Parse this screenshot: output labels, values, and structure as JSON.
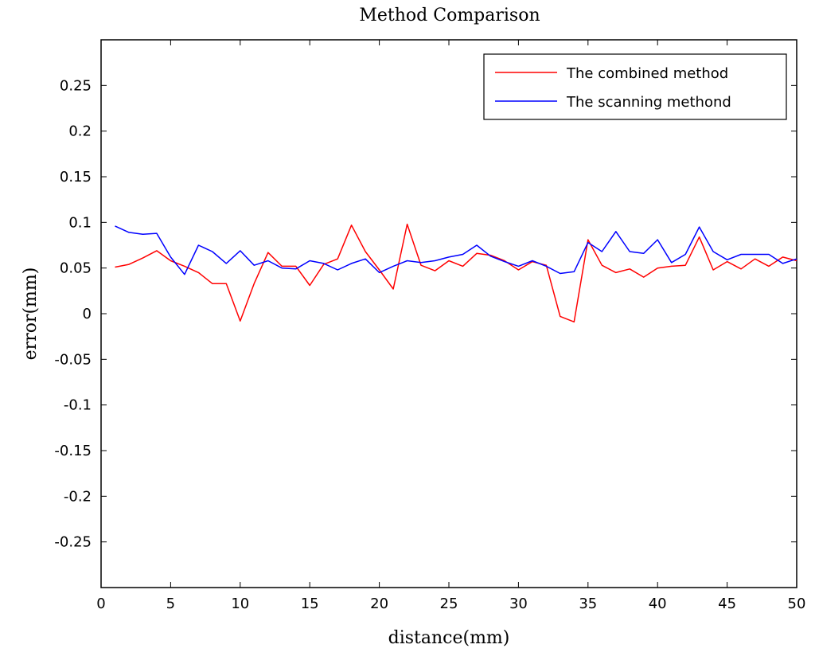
{
  "chart_data": {
    "type": "line",
    "title": "Method Comparison",
    "xlabel": "distance(mm)",
    "ylabel": "error(mm)",
    "xlim": [
      0,
      50
    ],
    "ylim": [
      -0.3,
      0.3
    ],
    "xticks": [
      0,
      5,
      10,
      15,
      20,
      25,
      30,
      35,
      40,
      45,
      50
    ],
    "yticks": [
      -0.25,
      -0.2,
      -0.15,
      -0.1,
      -0.05,
      0,
      0.05,
      0.1,
      0.15,
      0.2,
      0.25
    ],
    "ytick_labels": [
      "-0.25",
      "-0.2",
      "-0.15",
      "-0.1",
      "-0.05",
      "0",
      "0.05",
      "0.1",
      "0.15",
      "0.2",
      "0.25"
    ],
    "grid": false,
    "legend_position": "top-right",
    "series": [
      {
        "name": "The combined method",
        "color": "#ff0000",
        "x": [
          1,
          2,
          3,
          4,
          5,
          6,
          7,
          8,
          9,
          10,
          11,
          12,
          13,
          14,
          15,
          16,
          17,
          18,
          19,
          20,
          21,
          22,
          23,
          24,
          25,
          26,
          27,
          28,
          29,
          30,
          31,
          32,
          33,
          34,
          35,
          36,
          37,
          38,
          39,
          40,
          41,
          42,
          43,
          44,
          45,
          46,
          47,
          48,
          49,
          50
        ],
        "values": [
          0.051,
          0.054,
          0.061,
          0.069,
          0.058,
          0.052,
          0.045,
          0.033,
          0.033,
          -0.008,
          0.033,
          0.067,
          0.052,
          0.052,
          0.031,
          0.054,
          0.06,
          0.097,
          0.068,
          0.048,
          0.027,
          0.098,
          0.053,
          0.047,
          0.058,
          0.052,
          0.066,
          0.064,
          0.058,
          0.048,
          0.057,
          0.053,
          -0.003,
          -0.009,
          0.081,
          0.053,
          0.045,
          0.049,
          0.04,
          0.05,
          0.052,
          0.053,
          0.084,
          0.048,
          0.057,
          0.049,
          0.06,
          0.052,
          0.062,
          0.058
        ]
      },
      {
        "name": "The scanning methond",
        "color": "#0000ff",
        "x": [
          1,
          2,
          3,
          4,
          5,
          6,
          7,
          8,
          9,
          10,
          11,
          12,
          13,
          14,
          15,
          16,
          17,
          18,
          19,
          20,
          21,
          22,
          23,
          24,
          25,
          26,
          27,
          28,
          29,
          30,
          31,
          32,
          33,
          34,
          35,
          36,
          37,
          38,
          39,
          40,
          41,
          42,
          43,
          44,
          45,
          46,
          47,
          48,
          49,
          50
        ],
        "values": [
          0.096,
          0.089,
          0.087,
          0.088,
          0.062,
          0.043,
          0.075,
          0.068,
          0.055,
          0.069,
          0.053,
          0.058,
          0.05,
          0.049,
          0.058,
          0.055,
          0.048,
          0.055,
          0.06,
          0.045,
          0.052,
          0.058,
          0.056,
          0.058,
          0.062,
          0.065,
          0.075,
          0.063,
          0.057,
          0.052,
          0.058,
          0.052,
          0.044,
          0.046,
          0.078,
          0.068,
          0.09,
          0.068,
          0.066,
          0.081,
          0.056,
          0.065,
          0.095,
          0.068,
          0.059,
          0.065,
          0.065,
          0.065,
          0.055,
          0.06
        ]
      }
    ]
  }
}
